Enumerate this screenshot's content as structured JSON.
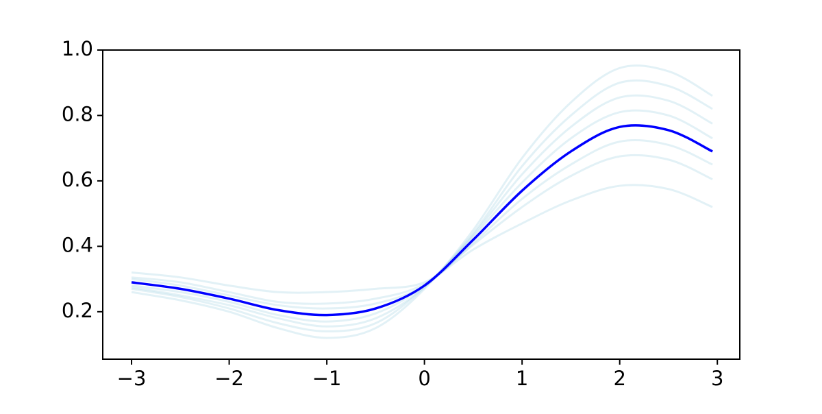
{
  "chart_data": {
    "type": "line",
    "x": [
      -3,
      -2.5,
      -2,
      -1.5,
      -1,
      -0.5,
      0,
      0.5,
      1,
      1.5,
      2,
      2.5,
      2.95
    ],
    "series": [
      {
        "color": "#add8e6",
        "alpha": 0.35,
        "values": [
          0.26,
          0.235,
          0.2,
          0.15,
          0.12,
          0.15,
          0.27,
          0.45,
          0.67,
          0.84,
          0.945,
          0.935,
          0.86
        ]
      },
      {
        "color": "#add8e6",
        "alpha": 0.35,
        "values": [
          0.27,
          0.245,
          0.21,
          0.165,
          0.14,
          0.165,
          0.275,
          0.44,
          0.645,
          0.8,
          0.9,
          0.89,
          0.82
        ]
      },
      {
        "color": "#add8e6",
        "alpha": 0.35,
        "values": [
          0.275,
          0.25,
          0.22,
          0.18,
          0.155,
          0.18,
          0.275,
          0.435,
          0.62,
          0.765,
          0.855,
          0.845,
          0.775
        ]
      },
      {
        "color": "#add8e6",
        "alpha": 0.35,
        "values": [
          0.28,
          0.26,
          0.23,
          0.19,
          0.17,
          0.195,
          0.28,
          0.43,
          0.595,
          0.73,
          0.81,
          0.8,
          0.73
        ]
      },
      {
        "color": "#add8e6",
        "alpha": 0.35,
        "values": [
          0.3,
          0.28,
          0.25,
          0.22,
          0.21,
          0.225,
          0.28,
          0.41,
          0.545,
          0.65,
          0.72,
          0.71,
          0.65
        ]
      },
      {
        "color": "#add8e6",
        "alpha": 0.35,
        "values": [
          0.305,
          0.29,
          0.26,
          0.23,
          0.225,
          0.24,
          0.285,
          0.405,
          0.52,
          0.615,
          0.675,
          0.665,
          0.605
        ]
      },
      {
        "color": "#add8e6",
        "alpha": 0.35,
        "values": [
          0.32,
          0.305,
          0.28,
          0.26,
          0.26,
          0.27,
          0.29,
          0.39,
          0.47,
          0.54,
          0.585,
          0.575,
          0.52
        ]
      },
      {
        "color": "#0000ff",
        "alpha": 1,
        "values": [
          0.29,
          0.27,
          0.24,
          0.205,
          0.19,
          0.21,
          0.28,
          0.42,
          0.57,
          0.69,
          0.765,
          0.755,
          0.69
        ]
      }
    ],
    "xlim": [
      -3.295,
      3.23
    ],
    "ylim": [
      0.055,
      1.0
    ],
    "xticks": [
      {
        "value": -3,
        "label": "−3"
      },
      {
        "value": -2,
        "label": "−2"
      },
      {
        "value": -1,
        "label": "−1"
      },
      0,
      1,
      2,
      3
    ],
    "yticks": [
      0.2,
      0.4,
      0.6,
      0.8,
      {
        "value": 1,
        "label": "1.0"
      }
    ],
    "grid": false
  }
}
